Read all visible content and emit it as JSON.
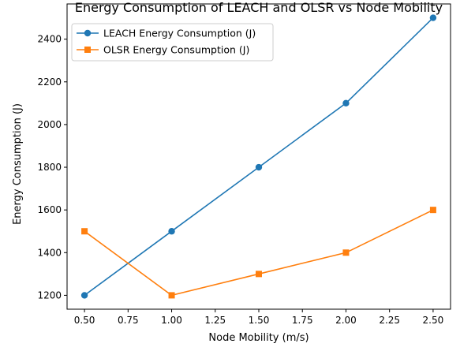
{
  "chart_data": {
    "type": "line",
    "title": "Energy Consumption of LEACH and OLSR vs Node Mobility",
    "xlabel": "Node Mobility (m/s)",
    "ylabel": "Energy Consumption (J)",
    "x": [
      0.5,
      1.0,
      1.5,
      2.0,
      2.5
    ],
    "xlim": [
      0.4,
      2.6
    ],
    "ylim": [
      1135,
      2565
    ],
    "xticks": [
      "0.50",
      "0.75",
      "1.00",
      "1.25",
      "1.50",
      "1.75",
      "2.00",
      "2.25",
      "2.50"
    ],
    "yticks": [
      "1200",
      "1400",
      "1600",
      "1800",
      "2000",
      "2200",
      "2400"
    ],
    "grid": false,
    "legend_position": "upper-left",
    "series": [
      {
        "name": "LEACH Energy Consumption (J)",
        "values": [
          1200,
          1500,
          1800,
          2100,
          2500
        ],
        "color": "#1f77b4",
        "marker": "circle"
      },
      {
        "name": "OLSR Energy Consumption (J)",
        "values": [
          1500,
          1200,
          1300,
          1400,
          1600
        ],
        "color": "#ff7f0e",
        "marker": "square"
      }
    ]
  }
}
